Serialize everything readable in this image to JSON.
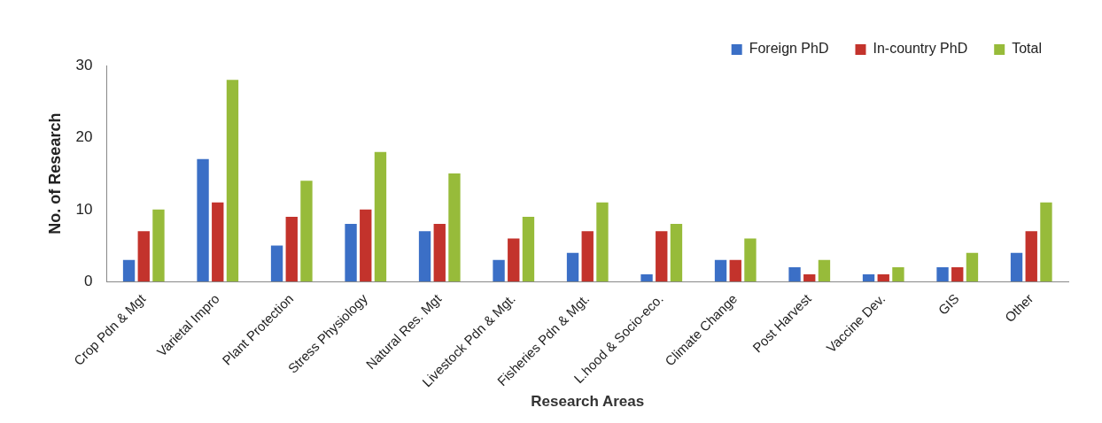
{
  "chart_data": {
    "type": "bar",
    "xlabel": "Research Areas",
    "ylabel": "No. of Research",
    "categories": [
      "Crop Pdn & Mgt",
      "Varietal Impro",
      "Plant Protection",
      "Stress Physiology",
      "Natural Res. Mgt",
      "Livestock Pdn & Mgt.",
      "Fisheries Pdn & Mgt.",
      "L.hood & Socio-eco.",
      "Climate Change",
      "Post Harvest",
      "Vaccine Dev.",
      "GIS",
      "Other"
    ],
    "series": [
      {
        "name": "Foreign PhD",
        "color": "#3b6fc6",
        "values": [
          3,
          17,
          5,
          8,
          7,
          3,
          4,
          1,
          3,
          2,
          1,
          2,
          4
        ]
      },
      {
        "name": "In-country PhD",
        "color": "#c3332c",
        "values": [
          7,
          11,
          9,
          10,
          8,
          6,
          7,
          7,
          3,
          1,
          1,
          2,
          7
        ]
      },
      {
        "name": "Total",
        "color": "#97bb3a",
        "values": [
          10,
          28,
          14,
          18,
          15,
          9,
          11,
          8,
          6,
          3,
          2,
          4,
          11
        ]
      }
    ],
    "ylim": [
      0,
      30
    ],
    "yticks": [
      0,
      10,
      20,
      30
    ],
    "grid": false,
    "legend": "top right"
  }
}
